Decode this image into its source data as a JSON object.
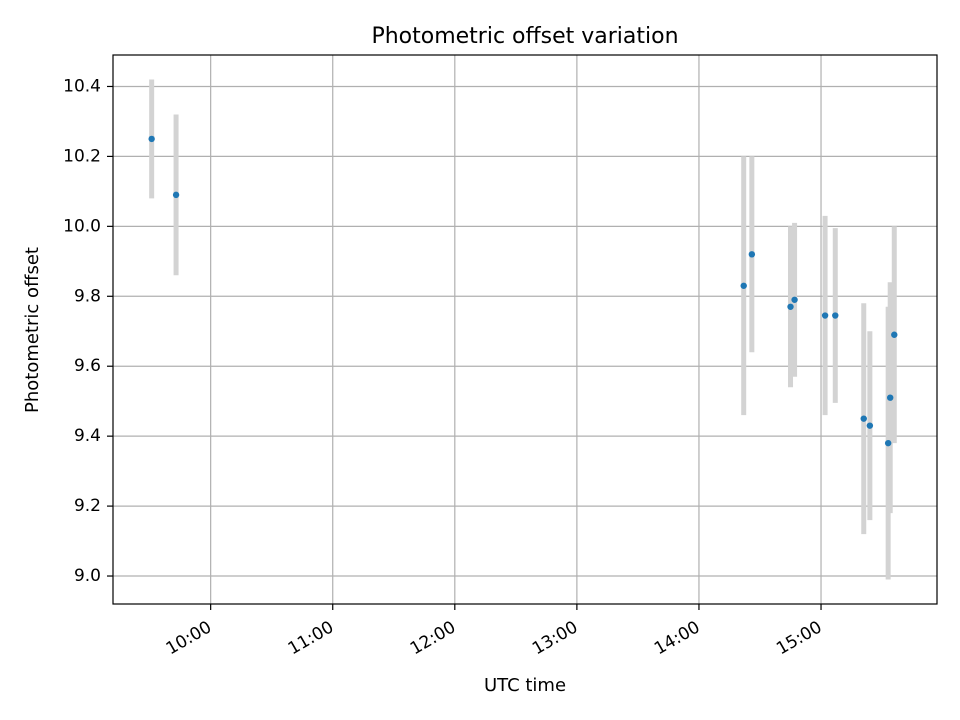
{
  "chart_data": {
    "type": "scatter",
    "title": "Photometric offset variation",
    "xlabel": "UTC time",
    "ylabel": "Photometric offset",
    "x_ticks": [
      "10:00",
      "11:00",
      "12:00",
      "13:00",
      "14:00",
      "15:00"
    ],
    "y_ticks": [
      9.0,
      9.2,
      9.4,
      9.6,
      9.8,
      10.0,
      10.2,
      10.4
    ],
    "xlim": [
      "09:12",
      "15:57"
    ],
    "ylim": [
      8.92,
      10.49
    ],
    "grid": true,
    "colors": {
      "point": "#1f77b4",
      "errorbar": "#d3d3d3"
    },
    "points": [
      {
        "x": "09:31",
        "y": 10.25,
        "err": 0.17
      },
      {
        "x": "09:43",
        "y": 10.09,
        "err": 0.23
      },
      {
        "x": "14:22",
        "y": 9.83,
        "err": 0.37
      },
      {
        "x": "14:26",
        "y": 9.92,
        "err": 0.28
      },
      {
        "x": "14:45",
        "y": 9.77,
        "err": 0.23
      },
      {
        "x": "14:47",
        "y": 9.79,
        "err": 0.22
      },
      {
        "x": "15:02",
        "y": 9.745,
        "err": 0.285
      },
      {
        "x": "15:07",
        "y": 9.745,
        "err": 0.25
      },
      {
        "x": "15:21",
        "y": 9.45,
        "err": 0.33
      },
      {
        "x": "15:24",
        "y": 9.43,
        "err": 0.27
      },
      {
        "x": "15:33",
        "y": 9.38,
        "err": 0.39
      },
      {
        "x": "15:34",
        "y": 9.51,
        "err": 0.33
      },
      {
        "x": "15:36",
        "y": 9.69,
        "err": 0.31
      }
    ]
  }
}
